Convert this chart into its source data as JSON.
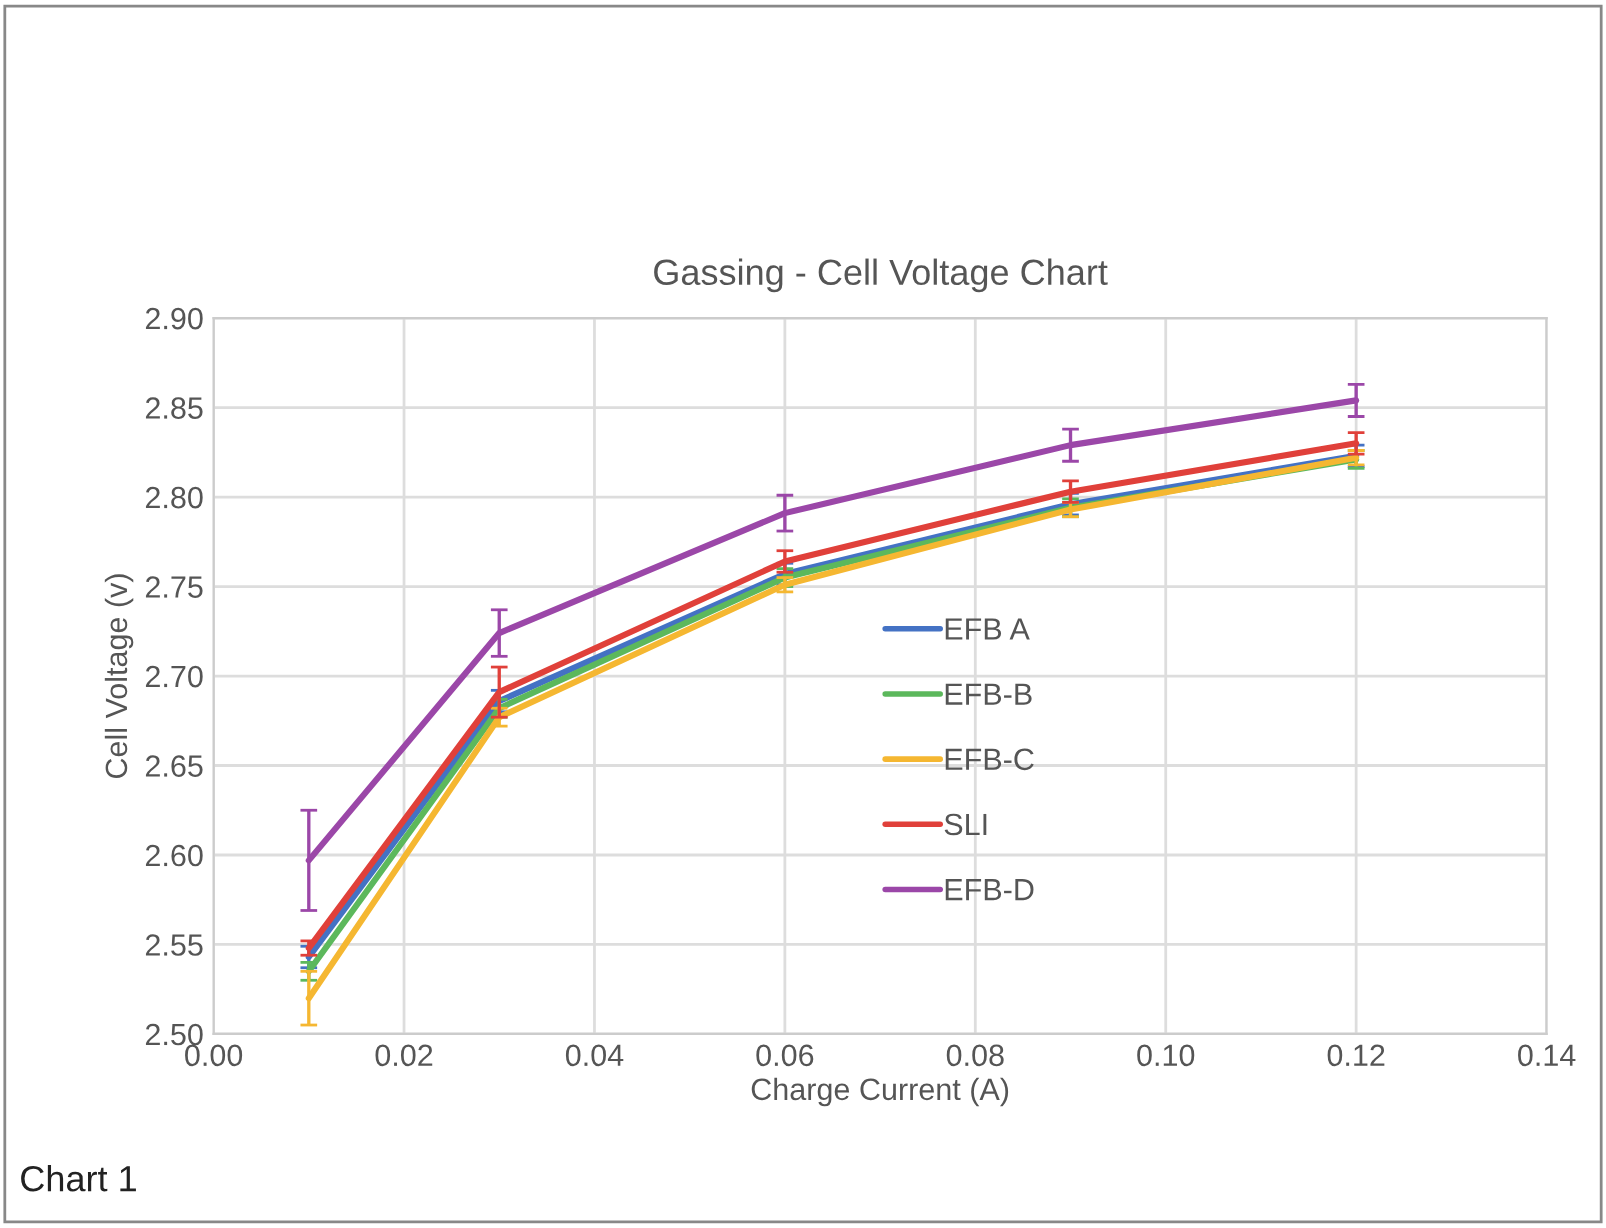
{
  "chart_data": {
    "type": "line",
    "title": "Gassing - Cell Voltage Chart",
    "xlabel": "Charge Current (A)",
    "ylabel": "Cell Voltage (v)",
    "x": [
      0.01,
      0.03,
      0.06,
      0.09,
      0.12
    ],
    "series": [
      {
        "name": "EFB A",
        "color": "#4472c4",
        "values": [
          2.543,
          2.686,
          2.757,
          2.796,
          2.823
        ],
        "errors": [
          0.006,
          0.006,
          0.006,
          0.006,
          0.006
        ]
      },
      {
        "name": "EFB-B",
        "color": "#5cb85c",
        "values": [
          2.535,
          2.682,
          2.755,
          2.794,
          2.821
        ],
        "errors": [
          0.005,
          0.005,
          0.005,
          0.005,
          0.005
        ]
      },
      {
        "name": "EFB-C",
        "color": "#f5b731",
        "values": [
          2.52,
          2.677,
          2.751,
          2.793,
          2.822
        ],
        "errors": [
          0.015,
          0.005,
          0.004,
          0.004,
          0.004
        ]
      },
      {
        "name": "SLI",
        "color": "#e0403a",
        "values": [
          2.548,
          2.691,
          2.764,
          2.803,
          2.83
        ],
        "errors": [
          0.004,
          0.014,
          0.006,
          0.006,
          0.006
        ]
      },
      {
        "name": "EFB-D",
        "color": "#9b47a8",
        "values": [
          2.597,
          2.724,
          2.791,
          2.829,
          2.854
        ],
        "errors": [
          0.028,
          0.013,
          0.01,
          0.009,
          0.009
        ]
      }
    ],
    "xlim": [
      0.0,
      0.14
    ],
    "xticks": [
      {
        "value": 0.0,
        "label": "0.00"
      },
      {
        "value": 0.02,
        "label": "0.02"
      },
      {
        "value": 0.04,
        "label": "0.04"
      },
      {
        "value": 0.06,
        "label": "0.06"
      },
      {
        "value": 0.08,
        "label": "0.08"
      },
      {
        "value": 0.1,
        "label": "0.10"
      },
      {
        "value": 0.12,
        "label": "0.12"
      },
      {
        "value": 0.14,
        "label": "0.14"
      }
    ],
    "ylim": [
      2.5,
      2.9
    ],
    "yticks": [
      {
        "value": 2.5,
        "label": "2.50"
      },
      {
        "value": 2.55,
        "label": "2.55"
      },
      {
        "value": 2.6,
        "label": "2.60"
      },
      {
        "value": 2.65,
        "label": "2.65"
      },
      {
        "value": 2.7,
        "label": "2.70"
      },
      {
        "value": 2.75,
        "label": "2.75"
      },
      {
        "value": 2.8,
        "label": "2.80"
      },
      {
        "value": 2.85,
        "label": "2.85"
      },
      {
        "value": 2.9,
        "label": "2.90"
      }
    ],
    "grid": true,
    "legend": "center",
    "marker": "none",
    "line_style": "solid",
    "annotations": [
      "Chart 1"
    ]
  }
}
